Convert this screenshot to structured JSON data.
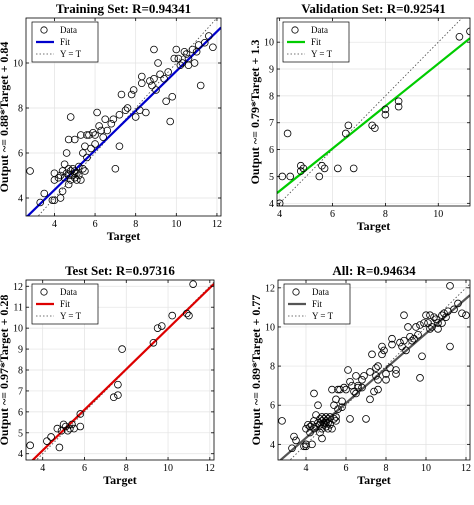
{
  "chart_data": [
    {
      "type": "scatter",
      "title": "Training Set: R=0.94341",
      "xlabel": "Target",
      "ylabel": "Output ~= 0.88*Target + 0.84",
      "xlim": [
        2.6,
        12.2
      ],
      "ylim": [
        3.2,
        12.0
      ],
      "xticks": [
        4,
        6,
        8,
        10,
        12
      ],
      "yticks": [
        4,
        6,
        8,
        10
      ],
      "grid": true,
      "legend_position": "top-left",
      "legend": [
        "Data",
        "Fit",
        "Y = T"
      ],
      "fit": {
        "slope": 0.88,
        "intercept": 0.84,
        "color": "#0000cc"
      },
      "series": [
        {
          "name": "Data",
          "x": [
            2.8,
            3.3,
            3.5,
            3.9,
            4.0,
            4.0,
            4.2,
            4.3,
            4.3,
            4.4,
            4.4,
            4.5,
            4.5,
            4.6,
            4.6,
            4.7,
            4.7,
            4.7,
            4.8,
            4.8,
            4.8,
            4.9,
            4.9,
            5.0,
            5.0,
            5.0,
            5.1,
            5.1,
            5.2,
            5.2,
            5.3,
            5.3,
            5.4,
            5.4,
            5.5,
            5.5,
            5.6,
            5.6,
            5.7,
            5.8,
            5.9,
            6.0,
            6.1,
            6.2,
            6.3,
            6.5,
            6.6,
            6.8,
            6.9,
            7.0,
            7.2,
            7.3,
            7.5,
            7.6,
            7.8,
            7.9,
            8.0,
            8.2,
            8.3,
            8.5,
            8.7,
            8.8,
            8.9,
            9.0,
            9.1,
            9.2,
            9.4,
            9.6,
            9.8,
            9.9,
            10.0,
            10.1,
            10.2,
            10.3,
            10.4,
            10.5,
            10.6,
            10.8,
            11.0,
            11.1,
            11.2,
            11.4,
            11.6,
            11.8,
            4.7,
            5.0,
            8.3,
            8.9,
            9.7,
            6.4,
            6.0,
            7.2,
            10.6,
            4.0,
            9.5,
            10.9
          ],
          "y": [
            5.2,
            3.8,
            4.2,
            3.9,
            4.8,
            5.1,
            4.9,
            5.0,
            4.0,
            5.2,
            4.3,
            4.9,
            5.5,
            5.1,
            6.0,
            4.6,
            5.0,
            5.3,
            4.8,
            5.2,
            7.6,
            5.0,
            5.3,
            5.2,
            4.9,
            6.6,
            5.1,
            4.8,
            5.4,
            5.0,
            6.8,
            4.8,
            5.3,
            6.0,
            5.2,
            6.3,
            5.8,
            6.8,
            6.8,
            6.2,
            6.9,
            6.8,
            7.8,
            7.2,
            7.0,
            7.5,
            7.0,
            7.3,
            7.5,
            5.3,
            7.7,
            8.6,
            7.9,
            8.0,
            8.6,
            8.8,
            7.6,
            7.9,
            9.1,
            7.8,
            9.2,
            9.0,
            9.3,
            8.8,
            10.0,
            9.5,
            9.3,
            9.6,
            8.5,
            10.2,
            10.6,
            10.2,
            9.9,
            10.0,
            10.5,
            10.4,
            9.9,
            10.6,
            10.5,
            10.8,
            9.0,
            10.9,
            11.2,
            10.7,
            6.6,
            5.1,
            9.4,
            10.6,
            7.4,
            6.7,
            6.4,
            6.3,
            10.2,
            3.9,
            8.3,
            10.0
          ]
        }
      ]
    },
    {
      "type": "scatter",
      "title": "Validation Set: R=0.92541",
      "xlabel": "Target",
      "ylabel": "Output ~= 0.79*Target + 1.3",
      "xlim": [
        3.9,
        11.2
      ],
      "ylim": [
        3.9,
        10.9
      ],
      "xticks": [
        4,
        6,
        8,
        10
      ],
      "yticks": [
        4,
        5,
        6,
        7,
        8,
        9,
        10
      ],
      "grid": true,
      "legend_position": "top-left",
      "legend": [
        "Data",
        "Fit",
        "Y = T"
      ],
      "fit": {
        "slope": 0.79,
        "intercept": 1.3,
        "color": "#00cc00"
      },
      "series": [
        {
          "name": "Data",
          "x": [
            4.0,
            4.3,
            4.4,
            4.8,
            4.8,
            4.9,
            5.5,
            5.6,
            5.7,
            6.2,
            6.5,
            6.6,
            6.8,
            7.5,
            7.6,
            8.0,
            8.0,
            8.5,
            8.5,
            10.8,
            11.2,
            4.1
          ],
          "y": [
            4.0,
            6.6,
            5.0,
            5.2,
            5.4,
            5.3,
            5.0,
            5.4,
            5.3,
            5.3,
            6.6,
            6.9,
            5.3,
            6.9,
            6.8,
            7.5,
            7.3,
            7.6,
            7.8,
            10.2,
            10.4,
            5.0
          ]
        }
      ]
    },
    {
      "type": "scatter",
      "title": "Test Set: R=0.97316",
      "xlabel": "Target",
      "ylabel": "Output ~= 0.97*Target + 0.28",
      "xlim": [
        3.2,
        12.2
      ],
      "ylim": [
        3.7,
        12.3
      ],
      "xticks": [
        4,
        6,
        8,
        10,
        12
      ],
      "yticks": [
        4,
        5,
        6,
        7,
        8,
        9,
        10,
        11,
        12
      ],
      "grid": true,
      "legend_position": "top-left",
      "legend": [
        "Data",
        "Fit",
        "Y = T"
      ],
      "fit": {
        "slope": 0.97,
        "intercept": 0.28,
        "color": "#dd0000"
      },
      "series": [
        {
          "name": "Data",
          "x": [
            3.4,
            4.2,
            4.4,
            4.7,
            4.8,
            5.0,
            5.1,
            5.3,
            5.4,
            5.5,
            5.8,
            7.4,
            7.6,
            7.6,
            7.8,
            9.3,
            9.5,
            9.7,
            10.2,
            10.9,
            11.0,
            11.2,
            5.8,
            4.9,
            5.2
          ],
          "y": [
            4.4,
            4.6,
            4.8,
            5.2,
            4.3,
            5.4,
            5.3,
            5.2,
            5.4,
            5.2,
            5.9,
            6.7,
            6.8,
            7.3,
            9.0,
            9.3,
            10.0,
            10.1,
            10.6,
            10.7,
            10.6,
            12.1,
            5.3,
            5.1,
            5.1
          ]
        }
      ]
    },
    {
      "type": "scatter",
      "title": "All: R=0.94634",
      "xlabel": "Target",
      "ylabel": "Output ~= 0.89*Target + 0.77",
      "xlim": [
        2.6,
        12.2
      ],
      "ylim": [
        3.2,
        12.4
      ],
      "xticks": [
        4,
        6,
        8,
        10,
        12
      ],
      "yticks": [
        4,
        6,
        8,
        10,
        12
      ],
      "grid": true,
      "legend_position": "top-left",
      "legend": [
        "Data",
        "Fit",
        "Y = T"
      ],
      "fit": {
        "slope": 0.89,
        "intercept": 0.77,
        "color": "#555555"
      },
      "series": [
        {
          "name": "Data",
          "x": [
            2.8,
            3.3,
            3.4,
            3.5,
            3.9,
            4.0,
            4.0,
            4.1,
            4.2,
            4.2,
            4.3,
            4.3,
            4.4,
            4.4,
            4.4,
            4.5,
            4.5,
            4.6,
            4.6,
            4.7,
            4.7,
            4.7,
            4.8,
            4.8,
            4.8,
            4.8,
            4.9,
            4.9,
            4.9,
            5.0,
            5.0,
            5.0,
            5.1,
            5.1,
            5.1,
            5.2,
            5.2,
            5.3,
            5.3,
            5.4,
            5.4,
            5.5,
            5.5,
            5.5,
            5.6,
            5.6,
            5.7,
            5.8,
            5.8,
            5.9,
            6.0,
            6.1,
            6.2,
            6.2,
            6.3,
            6.5,
            6.5,
            6.6,
            6.6,
            6.8,
            6.8,
            6.9,
            7.0,
            7.2,
            7.3,
            7.4,
            7.5,
            7.5,
            7.6,
            7.6,
            7.6,
            7.8,
            7.8,
            7.9,
            8.0,
            8.0,
            8.2,
            8.3,
            8.5,
            8.5,
            8.7,
            8.8,
            8.9,
            9.0,
            9.1,
            9.2,
            9.3,
            9.4,
            9.5,
            9.6,
            9.7,
            9.8,
            9.9,
            10.0,
            10.1,
            10.2,
            10.2,
            10.3,
            10.4,
            10.5,
            10.6,
            10.8,
            10.8,
            10.9,
            11.0,
            11.1,
            11.2,
            11.2,
            11.4,
            11.6,
            11.8,
            12.0,
            6.4,
            7.2,
            8.3,
            8.9,
            9.7,
            5.0,
            4.0,
            10.6
          ],
          "y": [
            5.2,
            3.8,
            4.4,
            4.2,
            3.9,
            4.8,
            4.0,
            5.0,
            4.9,
            4.6,
            5.0,
            4.0,
            5.2,
            4.8,
            6.6,
            4.9,
            5.5,
            5.1,
            6.0,
            4.6,
            5.0,
            5.3,
            4.8,
            5.2,
            5.4,
            4.3,
            5.0,
            5.3,
            5.1,
            5.2,
            4.9,
            5.4,
            5.1,
            4.8,
            5.3,
            5.4,
            5.0,
            6.8,
            4.8,
            5.3,
            6.0,
            5.2,
            6.3,
            5.4,
            5.8,
            6.8,
            6.8,
            6.2,
            5.9,
            6.9,
            6.8,
            7.8,
            7.2,
            5.3,
            7.0,
            7.5,
            6.6,
            7.0,
            6.9,
            7.3,
            6.9,
            7.5,
            5.3,
            7.7,
            8.6,
            6.7,
            7.9,
            7.5,
            8.0,
            6.8,
            7.3,
            8.6,
            9.0,
            8.8,
            7.6,
            7.3,
            7.9,
            9.1,
            7.8,
            7.6,
            9.2,
            9.0,
            9.3,
            8.8,
            10.0,
            9.5,
            9.3,
            9.4,
            10.0,
            9.6,
            10.1,
            8.5,
            10.2,
            10.6,
            10.2,
            9.9,
            10.6,
            10.0,
            10.5,
            10.4,
            9.9,
            10.6,
            10.2,
            10.7,
            10.5,
            10.8,
            9.0,
            12.1,
            10.9,
            11.2,
            10.7,
            10.6,
            6.7,
            6.3,
            9.4,
            10.6,
            7.4,
            5.1,
            3.9,
            10.2
          ]
        }
      ]
    }
  ]
}
